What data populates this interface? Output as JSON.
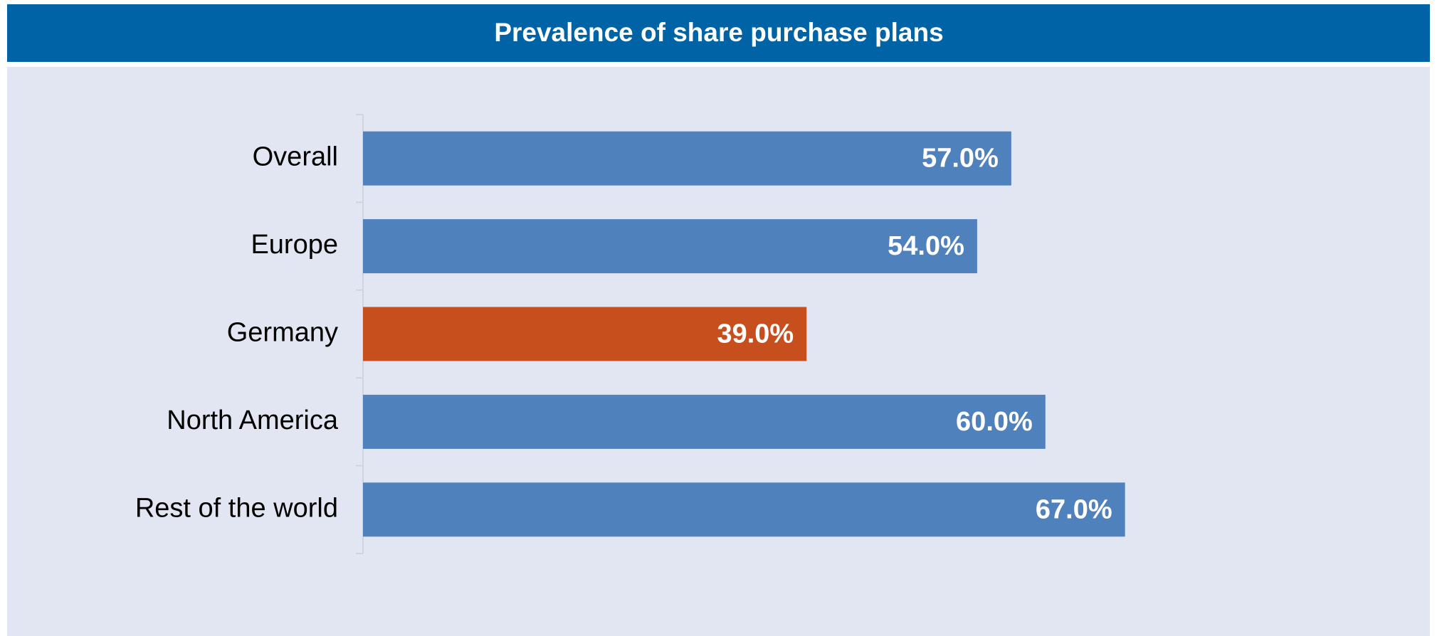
{
  "chart_data": {
    "type": "hbar",
    "title": "Prevalence of share purchase plans",
    "categories": [
      "Overall",
      "Europe",
      "Germany",
      "North America",
      "Rest of the world"
    ],
    "values": [
      57,
      54,
      39,
      60,
      67
    ],
    "value_labels": [
      "57.0%",
      "54.0%",
      "39.0%",
      "60.0%",
      "67.0%"
    ],
    "colors": [
      "#4f81bd",
      "#4f81bd",
      "#c74e1d",
      "#4f81bd",
      "#4f81bd"
    ]
  }
}
